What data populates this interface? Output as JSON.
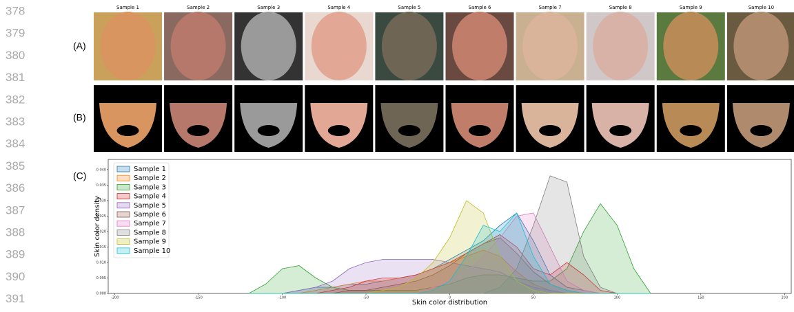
{
  "line_numbers": [
    "378",
    "379",
    "380",
    "381",
    "382",
    "383",
    "384",
    "385",
    "386",
    "387",
    "388",
    "389",
    "390",
    "391"
  ],
  "panels": [
    "(A)",
    "(B)",
    "(C)"
  ],
  "sample_labels": [
    "Sample 1",
    "Sample 2",
    "Sample 3",
    "Sample 4",
    "Sample 5",
    "Sample 6",
    "Sample 7",
    "Sample 8",
    "Sample 9",
    "Sample 10"
  ],
  "chart_data": {
    "type": "area",
    "xlabel": "Skin color distribution",
    "ylabel": "Skin color density",
    "legend": "upper left",
    "xlim": [
      -204,
      204
    ],
    "ylim": [
      0,
      0.0433
    ],
    "xticks": [
      -200,
      -150,
      -100,
      -50,
      0,
      50,
      100,
      150,
      200
    ],
    "yticks": [
      {
        "value": 0,
        "label": "0.000"
      },
      {
        "value": 0.005,
        "label": "0.005"
      },
      {
        "value": 0.01,
        "label": "0.010"
      },
      {
        "value": 0.015,
        "label": "0.015"
      },
      {
        "value": 0.02,
        "label": "0.020"
      },
      {
        "value": 0.025,
        "label": "0.025"
      },
      {
        "value": 0.03,
        "label": "0.030"
      },
      {
        "value": 0.035,
        "label": "0.035"
      },
      {
        "value": 0.04,
        "label": "0.040"
      }
    ],
    "x": [
      -120,
      -110,
      -100,
      -90,
      -80,
      -70,
      -60,
      -50,
      -40,
      -30,
      -20,
      -10,
      0,
      10,
      20,
      30,
      40,
      50,
      60,
      70,
      80,
      90,
      100,
      110,
      120
    ],
    "series": [
      {
        "name": "Sample 1",
        "color": "#1f77b4",
        "values": [
          0,
          0,
          0,
          0.001,
          0.002,
          0.002,
          0.003,
          0.003,
          0.004,
          0.005,
          0.006,
          0.008,
          0.011,
          0.014,
          0.017,
          0.022,
          0.026,
          0.017,
          0.006,
          0.002,
          0.001,
          0,
          0,
          0,
          0
        ]
      },
      {
        "name": "Sample 2",
        "color": "#ff7f0e",
        "values": [
          0,
          0,
          0,
          0,
          0.001,
          0.002,
          0.003,
          0.004,
          0.004,
          0.005,
          0.006,
          0.008,
          0.01,
          0.012,
          0.014,
          0.012,
          0.007,
          0.003,
          0.001,
          0,
          0,
          0,
          0,
          0,
          0
        ]
      },
      {
        "name": "Sample 3",
        "color": "#2ca02c",
        "values": [
          0,
          0.003,
          0.008,
          0.009,
          0.005,
          0.002,
          0.001,
          0.001,
          0.001,
          0.001,
          0.001,
          0.002,
          0.003,
          0.005,
          0.006,
          0.006,
          0.005,
          0.004,
          0.004,
          0.008,
          0.02,
          0.029,
          0.022,
          0.008,
          0
        ]
      },
      {
        "name": "Sample 4",
        "color": "#d62728",
        "values": [
          0,
          0,
          0,
          0,
          0,
          0.001,
          0.002,
          0.004,
          0.005,
          0.005,
          0.006,
          0.008,
          0.01,
          0.013,
          0.016,
          0.019,
          0.015,
          0.008,
          0.006,
          0.01,
          0.006,
          0.001,
          0,
          0,
          0
        ]
      },
      {
        "name": "Sample 5",
        "color": "#9467bd",
        "values": [
          0,
          0,
          0,
          0.001,
          0.002,
          0.004,
          0.008,
          0.01,
          0.011,
          0.011,
          0.011,
          0.011,
          0.01,
          0.009,
          0.008,
          0.007,
          0.004,
          0.002,
          0.001,
          0,
          0,
          0,
          0,
          0,
          0
        ]
      },
      {
        "name": "Sample 6",
        "color": "#8c564b",
        "values": [
          0,
          0,
          0,
          0,
          0,
          0,
          0.001,
          0.001,
          0.002,
          0.003,
          0.004,
          0.006,
          0.009,
          0.013,
          0.016,
          0.018,
          0.013,
          0.007,
          0.003,
          0.001,
          0,
          0,
          0,
          0,
          0
        ]
      },
      {
        "name": "Sample 7",
        "color": "#e377c2",
        "values": [
          0,
          0,
          0,
          0,
          0,
          0,
          0,
          0,
          0,
          0,
          0,
          0.002,
          0.004,
          0.007,
          0.012,
          0.018,
          0.025,
          0.026,
          0.015,
          0.004,
          0.001,
          0,
          0,
          0,
          0
        ]
      },
      {
        "name": "Sample 8",
        "color": "#7f7f7f",
        "values": [
          0,
          0,
          0,
          0,
          0,
          0,
          0,
          0,
          0,
          0,
          0,
          0,
          0,
          0,
          0,
          0.002,
          0.008,
          0.022,
          0.038,
          0.036,
          0.012,
          0.002,
          0,
          0,
          0
        ]
      },
      {
        "name": "Sample 9",
        "color": "#bcbd22",
        "values": [
          0,
          0,
          0,
          0,
          0,
          0,
          0,
          0,
          0.001,
          0.002,
          0.005,
          0.01,
          0.018,
          0.03,
          0.026,
          0.012,
          0.004,
          0.001,
          0,
          0,
          0,
          0,
          0,
          0,
          0
        ]
      },
      {
        "name": "Sample 10",
        "color": "#17becf",
        "values": [
          0,
          0,
          0,
          0,
          0,
          0,
          0,
          0,
          0,
          0,
          0,
          0.001,
          0.004,
          0.012,
          0.022,
          0.02,
          0.026,
          0.012,
          0.003,
          0.001,
          0,
          0,
          0,
          0,
          0
        ]
      }
    ]
  }
}
